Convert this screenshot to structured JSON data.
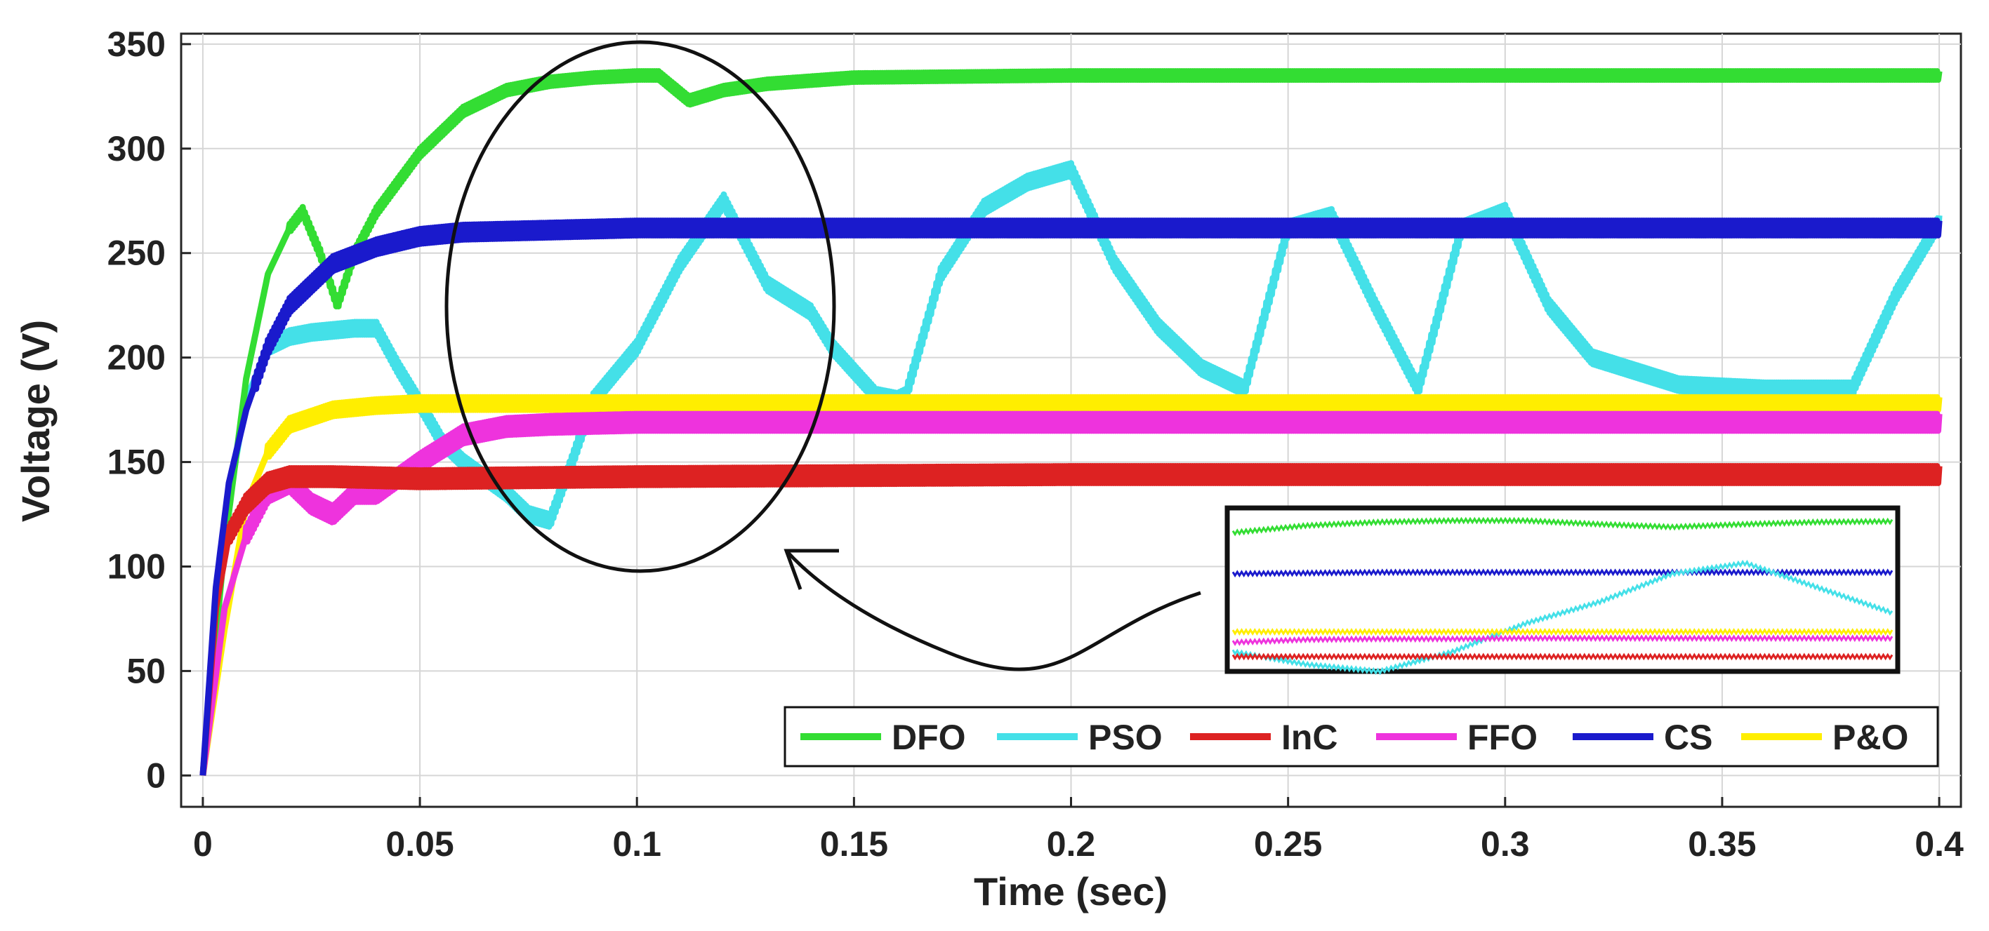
{
  "chart_data": {
    "type": "line",
    "title": "",
    "xlabel": "Time (sec)",
    "ylabel": "Voltage (V)",
    "xlim": [
      -0.005,
      0.405
    ],
    "ylim": [
      -15,
      355
    ],
    "xticks": [
      0,
      0.05,
      0.1,
      0.15,
      0.2,
      0.25,
      0.3,
      0.35,
      0.4
    ],
    "xtick_labels": [
      "0",
      "0.05",
      "0.1",
      "0.15",
      "0.2",
      "0.25",
      "0.3",
      "0.35",
      "0.4"
    ],
    "yticks": [
      0,
      50,
      100,
      150,
      200,
      250,
      300,
      350
    ],
    "ytick_labels": [
      "0",
      "50",
      "100",
      "150",
      "200",
      "250",
      "300",
      "350"
    ],
    "grid": true,
    "legend_position": "bottom-right",
    "annotations": [
      "ellipse highlighting 0.06–0.145 s",
      "arrow to zoomed inset of 0.06–0.145 s (bottom-right)"
    ],
    "series": [
      {
        "name": "DFO",
        "color": "#33dd33",
        "x": [
          0,
          0.005,
          0.01,
          0.015,
          0.02,
          0.023,
          0.027,
          0.031,
          0.035,
          0.04,
          0.05,
          0.06,
          0.07,
          0.08,
          0.09,
          0.1,
          0.105,
          0.112,
          0.12,
          0.13,
          0.15,
          0.2,
          0.25,
          0.3,
          0.35,
          0.4
        ],
        "values": [
          0,
          110,
          190,
          240,
          262,
          270,
          250,
          225,
          250,
          270,
          298,
          318,
          328,
          332,
          334,
          335,
          335,
          323,
          328,
          331,
          334,
          335,
          335,
          335,
          335,
          335
        ],
        "noise": 2,
        "noise_start": 0.02
      },
      {
        "name": "PSO",
        "color": "#44e0e8",
        "x": [
          0,
          0.005,
          0.01,
          0.015,
          0.02,
          0.025,
          0.03,
          0.035,
          0.04,
          0.045,
          0.05,
          0.055,
          0.06,
          0.07,
          0.075,
          0.08,
          0.085,
          0.09,
          0.1,
          0.11,
          0.12,
          0.125,
          0.13,
          0.14,
          0.145,
          0.155,
          0.16,
          0.162,
          0.17,
          0.18,
          0.19,
          0.2,
          0.21,
          0.22,
          0.23,
          0.24,
          0.25,
          0.26,
          0.27,
          0.28,
          0.29,
          0.3,
          0.31,
          0.32,
          0.34,
          0.36,
          0.38,
          0.39,
          0.4
        ],
        "values": [
          0,
          120,
          180,
          205,
          210,
          212,
          213,
          214,
          214,
          195,
          178,
          160,
          150,
          135,
          125,
          122,
          150,
          180,
          205,
          245,
          275,
          255,
          235,
          222,
          205,
          182,
          180,
          182,
          240,
          272,
          284,
          290,
          245,
          215,
          195,
          185,
          262,
          268,
          225,
          185,
          262,
          270,
          225,
          200,
          187,
          185,
          185,
          230,
          265
        ],
        "noise": 3,
        "noise_start": 0.015
      },
      {
        "name": "InC",
        "color": "#dd2222",
        "x": [
          0,
          0.003,
          0.006,
          0.01,
          0.015,
          0.02,
          0.03,
          0.05,
          0.1,
          0.2,
          0.3,
          0.4
        ],
        "values": [
          0,
          80,
          115,
          130,
          140,
          143,
          143,
          142,
          143,
          144,
          144,
          144
        ],
        "noise": 4,
        "noise_start": 0.006
      },
      {
        "name": "FFO",
        "color": "#ee33dd",
        "x": [
          0,
          0.005,
          0.01,
          0.015,
          0.02,
          0.025,
          0.03,
          0.035,
          0.04,
          0.05,
          0.06,
          0.07,
          0.08,
          0.1,
          0.2,
          0.3,
          0.4
        ],
        "values": [
          0,
          80,
          115,
          135,
          140,
          130,
          125,
          135,
          135,
          150,
          163,
          167,
          168,
          169,
          169,
          169,
          169
        ],
        "noise": 4,
        "noise_start": 0.01
      },
      {
        "name": "CS",
        "color": "#1a1acc",
        "x": [
          0,
          0.003,
          0.006,
          0.01,
          0.015,
          0.02,
          0.03,
          0.04,
          0.05,
          0.06,
          0.08,
          0.1,
          0.2,
          0.3,
          0.4
        ],
        "values": [
          0,
          90,
          140,
          175,
          205,
          225,
          245,
          253,
          258,
          260,
          261,
          262,
          262,
          262,
          262
        ],
        "noise": 3.5,
        "noise_start": 0.012
      },
      {
        "name": "P&O",
        "color": "#ffee00",
        "x": [
          0,
          0.005,
          0.01,
          0.015,
          0.02,
          0.03,
          0.04,
          0.05,
          0.07,
          0.1,
          0.2,
          0.3,
          0.4
        ],
        "values": [
          0,
          70,
          130,
          155,
          168,
          175,
          177,
          178,
          178,
          178,
          178,
          178,
          178
        ],
        "noise": 3,
        "noise_start": 0.015
      }
    ],
    "inset": {
      "x_range": [
        0.06,
        0.145
      ],
      "series": [
        {
          "name": "DFO",
          "values": [
            318,
            328,
            333,
            335,
            335,
            330,
            326,
            330,
            333,
            334
          ]
        },
        {
          "name": "CS",
          "values": [
            260,
            261,
            262,
            262,
            262,
            262,
            262,
            262,
            262,
            262
          ]
        },
        {
          "name": "PSO",
          "values": [
            150,
            132,
            122,
            150,
            190,
            220,
            260,
            275,
            240,
            205
          ]
        },
        {
          "name": "P&O",
          "values": [
            178,
            178,
            178,
            178,
            178,
            178,
            178,
            178,
            178,
            178
          ]
        },
        {
          "name": "FFO",
          "values": [
            163,
            167,
            168,
            168,
            169,
            169,
            169,
            169,
            169,
            169
          ]
        },
        {
          "name": "InC",
          "values": [
            143,
            143,
            143,
            143,
            143,
            143,
            143,
            143,
            143,
            143
          ]
        }
      ]
    }
  }
}
